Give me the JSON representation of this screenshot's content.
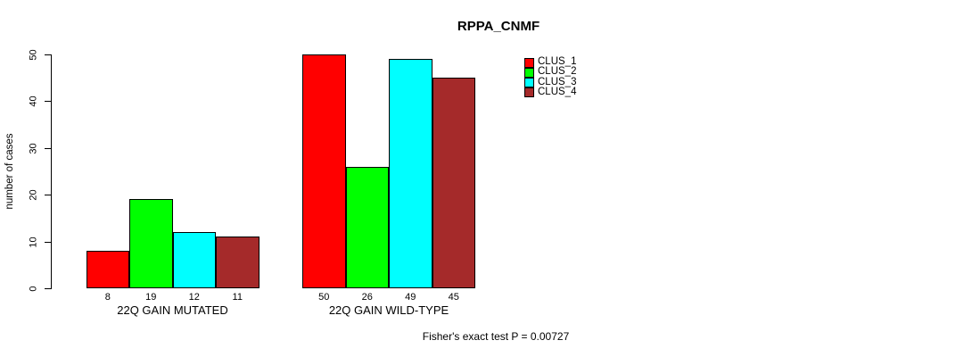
{
  "chart_data": {
    "type": "bar",
    "title": "RPPA_CNMF",
    "xlabel": "",
    "ylabel": "number of cases",
    "ylim": [
      0,
      50
    ],
    "yticks": [
      0,
      10,
      20,
      30,
      40,
      50
    ],
    "grid": false,
    "legend_position": "right-top",
    "bar_value_labels_shown": true,
    "series": [
      {
        "name": "CLUS_1",
        "color": "#FF0000"
      },
      {
        "name": "CLUS_2",
        "color": "#00FF00"
      },
      {
        "name": "CLUS_3",
        "color": "#00FFFF"
      },
      {
        "name": "CLUS_4",
        "color": "#A52A2A"
      }
    ],
    "groups": [
      {
        "label": "22Q GAIN MUTATED",
        "values": [
          8,
          19,
          12,
          11
        ]
      },
      {
        "label": "22Q GAIN WILD-TYPE",
        "values": [
          50,
          26,
          49,
          45
        ]
      }
    ]
  },
  "footer": {
    "text": "Fisher's exact test P = 0.00727"
  }
}
